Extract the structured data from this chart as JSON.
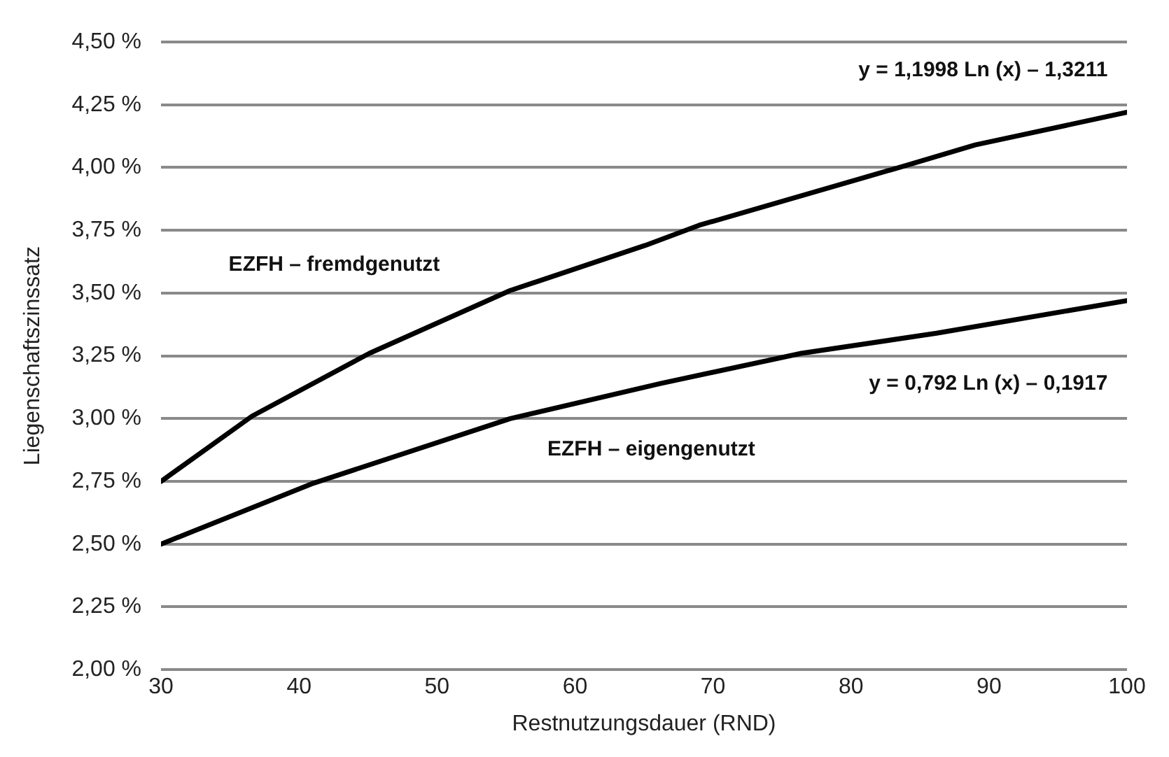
{
  "chart_data": {
    "type": "line",
    "xlabel": "Restnutzungsdauer (RND)",
    "ylabel": "Liegenschaftszinssatz",
    "series": [
      {
        "name": "EZFH – fremdgenutzt",
        "color": "#000000",
        "x": [
          30,
          36.6,
          45.1,
          55.3,
          65.1,
          69,
          84.1,
          89,
          100
        ],
        "values": [
          2.75,
          3.01,
          3.26,
          3.51,
          3.69,
          3.77,
          4.01,
          4.09,
          4.22
        ]
      },
      {
        "name": "EZFH – eigengenutzt",
        "color": "#000000",
        "x": [
          30,
          40.9,
          55.3,
          66.2,
          76.4,
          86.2,
          100
        ],
        "values": [
          2.5,
          2.74,
          3.0,
          3.14,
          3.26,
          3.34,
          3.47
        ]
      }
    ],
    "annotations": [
      "y = 1,1998 Ln (x) – 1,3211",
      "y = 0,792 Ln (x) – 0,1917"
    ],
    "xlim": [
      30,
      100
    ],
    "xticks": [
      30,
      40,
      50,
      60,
      70,
      80,
      90,
      100
    ],
    "ylim": [
      2,
      4.5
    ],
    "yticks": [
      {
        "value": 2,
        "label": "2,00 %"
      },
      {
        "value": 2.25,
        "label": "2,25 %"
      },
      {
        "value": 2.5,
        "label": "2,50 %"
      },
      {
        "value": 2.75,
        "label": "2,75 %"
      },
      {
        "value": 3,
        "label": "3,00 %"
      },
      {
        "value": 3.25,
        "label": "3,25 %"
      },
      {
        "value": 3.5,
        "label": "3,50 %"
      },
      {
        "value": 3.75,
        "label": "3,75 %"
      },
      {
        "value": 4,
        "label": "4,00 %"
      },
      {
        "value": 4.25,
        "label": "4,25 %"
      },
      {
        "value": 4.5,
        "label": "4,50 %"
      }
    ],
    "grid": "y",
    "legend": false,
    "marker": "none",
    "line_style": "solid"
  }
}
